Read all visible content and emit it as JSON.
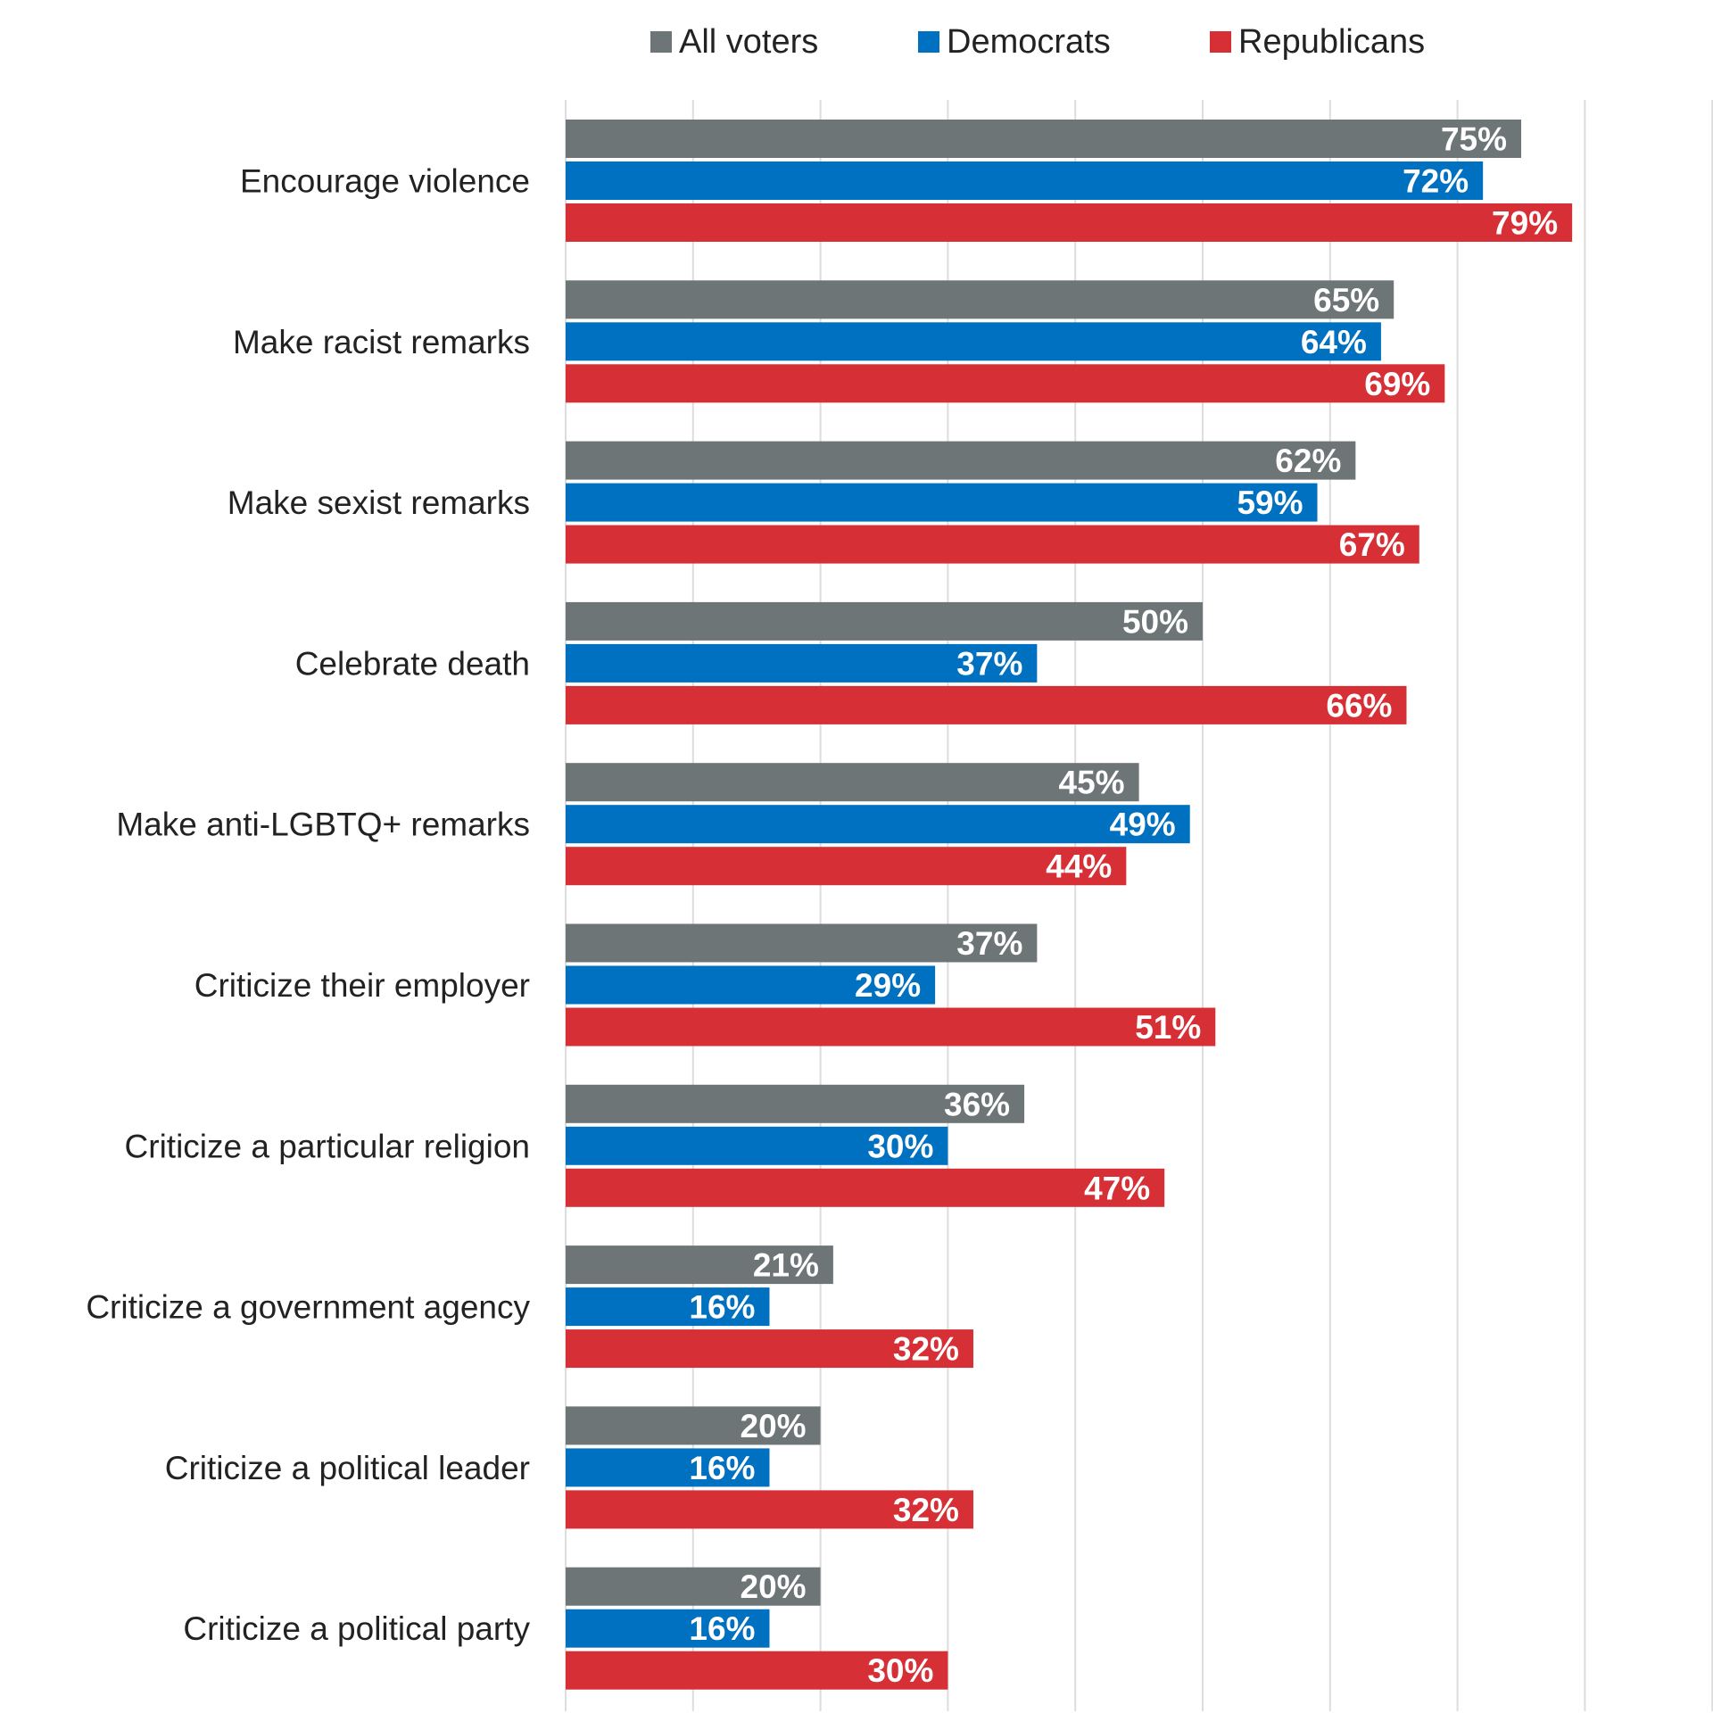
{
  "chart_data": {
    "type": "bar",
    "orientation": "horizontal",
    "categories": [
      "Encourage violence",
      "Make racist remarks",
      "Make sexist remarks",
      "Celebrate death",
      "Make anti-LGBTQ+ remarks",
      "Criticize their employer",
      "Criticize a particular religion",
      "Criticize a government agency",
      "Criticize a political leader",
      "Criticize a political party"
    ],
    "series": [
      {
        "name": "All voters",
        "color": "#6d7576",
        "values": [
          75,
          65,
          62,
          50,
          45,
          37,
          36,
          21,
          20,
          20
        ]
      },
      {
        "name": "Democrats",
        "color": "#0070c0",
        "values": [
          72,
          64,
          59,
          37,
          49,
          29,
          30,
          16,
          16,
          16
        ]
      },
      {
        "name": "Republicans",
        "color": "#d62f35",
        "values": [
          79,
          69,
          67,
          66,
          44,
          51,
          47,
          32,
          32,
          30
        ]
      }
    ],
    "value_suffix": "%",
    "xlim": [
      0,
      90
    ],
    "grid": true,
    "legend_position": "top"
  }
}
